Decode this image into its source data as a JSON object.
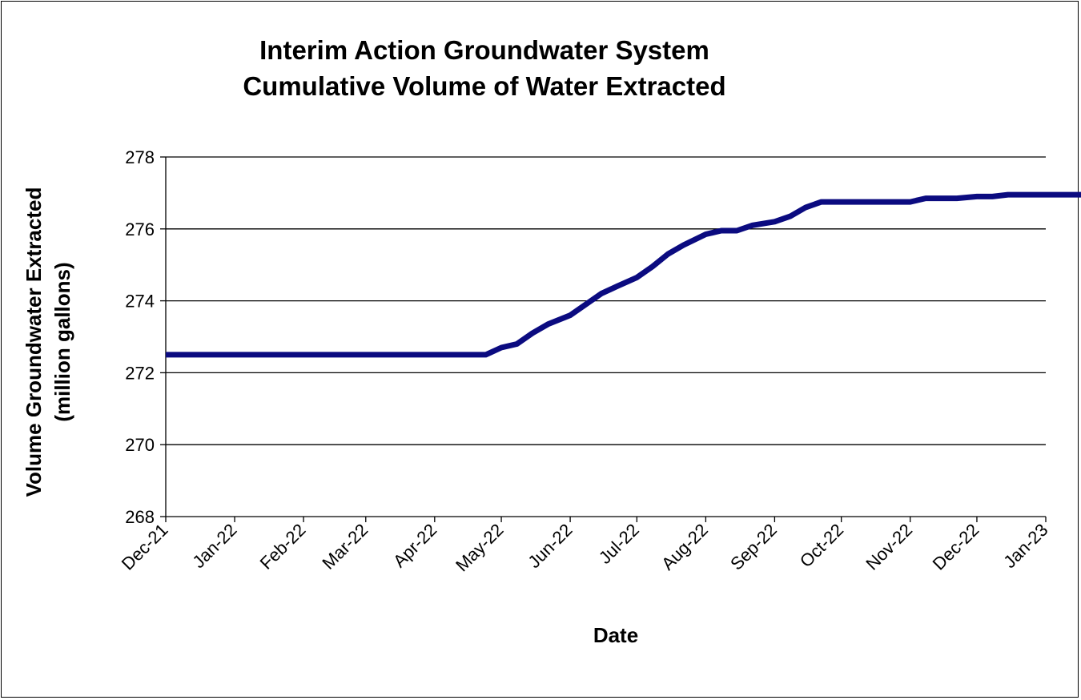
{
  "chart_data": {
    "type": "line",
    "title": "Interim  Action Groundwater System",
    "subtitle": "Cumulative Volume  of Water Extracted",
    "xlabel": "Date",
    "ylabel_line1": "Volume Groundwater Extracted",
    "ylabel_line2": "(million gallons)",
    "x_tick_labels": [
      "Dec-21",
      "Jan-22",
      "Feb-22",
      "Mar-22",
      "Apr-22",
      "May-22",
      "Jun-22",
      "Jul-22",
      "Aug-22",
      "Sep-22",
      "Oct-22",
      "Nov-22",
      "Dec-22",
      "Jan-23"
    ],
    "y_ticks": [
      268,
      270,
      272,
      274,
      276,
      278
    ],
    "ylim": [
      268,
      278
    ],
    "grid": "horizontal",
    "line_color": "#0b0b80",
    "series": [
      {
        "x": [
          "2021-12-01",
          "2022-01-01",
          "2022-02-01",
          "2022-03-01",
          "2022-04-01",
          "2022-04-24",
          "2022-05-01",
          "2022-05-08",
          "2022-05-15",
          "2022-05-22",
          "2022-06-01",
          "2022-06-08",
          "2022-06-15",
          "2022-06-22",
          "2022-07-01",
          "2022-07-08",
          "2022-07-15",
          "2022-07-22",
          "2022-08-01",
          "2022-08-08",
          "2022-08-15",
          "2022-08-22",
          "2022-09-01",
          "2022-09-08",
          "2022-09-15",
          "2022-09-22",
          "2022-10-01",
          "2022-10-08",
          "2022-10-15",
          "2022-10-22",
          "2022-11-01",
          "2022-11-08",
          "2022-11-15",
          "2022-11-22",
          "2022-12-01",
          "2022-12-08",
          "2022-12-15",
          "2022-12-22",
          "2023-01-01",
          "2023-01-08",
          "2023-01-15",
          "2023-01-22",
          "2023-01-31"
        ],
        "values": [
          272.5,
          272.5,
          272.5,
          272.5,
          272.5,
          272.5,
          272.7,
          272.8,
          273.1,
          273.35,
          273.6,
          273.9,
          274.2,
          274.4,
          274.65,
          274.95,
          275.3,
          275.55,
          275.85,
          275.95,
          275.95,
          276.1,
          276.2,
          276.35,
          276.6,
          276.75,
          276.75,
          276.75,
          276.75,
          276.75,
          276.75,
          276.85,
          276.85,
          276.85,
          276.9,
          276.9,
          276.95,
          276.95,
          276.95,
          276.95,
          276.95,
          276.95,
          276.95
        ]
      }
    ]
  }
}
